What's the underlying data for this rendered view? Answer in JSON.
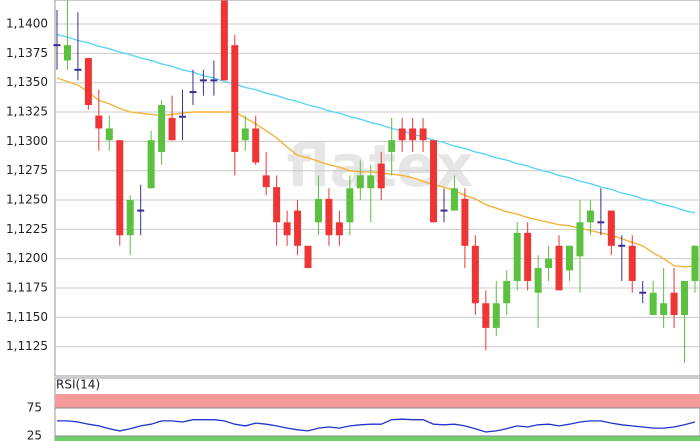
{
  "chart_data": [
    {
      "type": "candlestick",
      "watermark": "flatex",
      "open": [
        1.1382,
        1.1369,
        1.1361,
        1.1371,
        1.1322,
        1.1301,
        1.1301,
        1.122,
        1.1241,
        1.126,
        1.1291,
        1.132,
        1.1321,
        1.1342,
        1.1352,
        1.1352,
        1.142,
        1.1382,
        1.1301,
        1.1311,
        1.1271,
        1.1261,
        1.1231,
        1.1241,
        1.1211,
        1.1231,
        1.1251,
        1.1231,
        1.1231,
        1.126,
        1.126,
        1.1281,
        1.1291,
        1.1311,
        1.1311,
        1.1311,
        1.1301,
        1.1241,
        1.1241,
        1.1251,
        1.1211,
        1.1162,
        1.1141,
        1.1162,
        1.1181,
        1.1222,
        1.1171,
        1.1192,
        1.1211,
        1.119,
        1.1202,
        1.1231,
        1.1231,
        1.1241,
        1.1211,
        1.1211,
        1.1171,
        1.1152,
        1.1152,
        1.1171,
        1.1152,
        1.1181
      ],
      "high": [
        1.1412,
        1.142,
        1.141,
        1.1371,
        1.1344,
        1.1322,
        1.1301,
        1.1254,
        1.1263,
        1.1309,
        1.1335,
        1.1339,
        1.1344,
        1.1361,
        1.1361,
        1.1369,
        1.142,
        1.1391,
        1.1322,
        1.1322,
        1.1291,
        1.1271,
        1.1241,
        1.125,
        1.1211,
        1.1271,
        1.126,
        1.1241,
        1.1271,
        1.1284,
        1.128,
        1.1291,
        1.132,
        1.132,
        1.132,
        1.132,
        1.1301,
        1.126,
        1.1271,
        1.126,
        1.122,
        1.1173,
        1.1181,
        1.119,
        1.1231,
        1.1231,
        1.1203,
        1.1211,
        1.122,
        1.1211,
        1.125,
        1.125,
        1.126,
        1.1241,
        1.122,
        1.122,
        1.1181,
        1.1181,
        1.1192,
        1.1192,
        1.1181,
        1.1211
      ],
      "low": [
        1.1361,
        1.1361,
        1.1352,
        1.1327,
        1.1292,
        1.1292,
        1.1211,
        1.1203,
        1.122,
        1.126,
        1.128,
        1.1301,
        1.1301,
        1.1331,
        1.1339,
        1.1339,
        1.1352,
        1.1271,
        1.1292,
        1.128,
        1.1254,
        1.1211,
        1.1211,
        1.1203,
        1.1192,
        1.122,
        1.1211,
        1.1211,
        1.122,
        1.125,
        1.1231,
        1.125,
        1.1271,
        1.1291,
        1.1291,
        1.1291,
        1.1231,
        1.1231,
        1.1241,
        1.1192,
        1.1152,
        1.1122,
        1.1134,
        1.1152,
        1.1173,
        1.1173,
        1.1141,
        1.1181,
        1.1173,
        1.1181,
        1.1171,
        1.122,
        1.122,
        1.1203,
        1.1181,
        1.1171,
        1.1162,
        1.1152,
        1.1141,
        1.1141,
        1.1111,
        1.1171
      ],
      "close": [
        1.1382,
        1.1382,
        1.1361,
        1.1331,
        1.1311,
        1.1311,
        1.122,
        1.125,
        1.1241,
        1.1301,
        1.1331,
        1.1301,
        1.1321,
        1.1342,
        1.1352,
        1.1352,
        1.1352,
        1.1291,
        1.1311,
        1.1282,
        1.1261,
        1.1231,
        1.122,
        1.1211,
        1.1192,
        1.1251,
        1.122,
        1.122,
        1.126,
        1.1271,
        1.1271,
        1.126,
        1.1301,
        1.1301,
        1.1301,
        1.1301,
        1.1231,
        1.1241,
        1.126,
        1.1211,
        1.1162,
        1.1141,
        1.1162,
        1.1181,
        1.1222,
        1.1181,
        1.1192,
        1.12,
        1.1173,
        1.1211,
        1.1231,
        1.1241,
        1.1231,
        1.1211,
        1.1211,
        1.1181,
        1.1171,
        1.1171,
        1.1162,
        1.1152,
        1.1181,
        1.1211
      ],
      "up_color": "#5cc040",
      "down_color": "#ee3535",
      "doji_color": "#3a2d96",
      "lines": [
        {
          "color": "#5cd5f2",
          "values": [
            1.1391,
            1.1389,
            1.1386,
            1.1384,
            1.1381,
            1.1379,
            1.1376,
            1.1374,
            1.1371,
            1.1369,
            1.1366,
            1.1364,
            1.1361,
            1.1359,
            1.1356,
            1.1354,
            1.1351,
            1.1349,
            1.1346,
            1.1344,
            1.1341,
            1.1339,
            1.1336,
            1.1334,
            1.1331,
            1.1329,
            1.1326,
            1.1324,
            1.1321,
            1.1319,
            1.1316,
            1.1314,
            1.1311,
            1.1309,
            1.1306,
            1.1304,
            1.1301,
            1.1299,
            1.1296,
            1.1294,
            1.1291,
            1.1289,
            1.1286,
            1.1284,
            1.1281,
            1.1279,
            1.1276,
            1.1274,
            1.1271,
            1.1269,
            1.1266,
            1.1264,
            1.1261,
            1.1259,
            1.1256,
            1.1254,
            1.1251,
            1.1249,
            1.1246,
            1.1244,
            1.1241,
            1.1239
          ]
        },
        {
          "color": "#f4b43c",
          "values": [
            1.1354,
            1.1351,
            1.1348,
            1.1342,
            1.1335,
            1.1332,
            1.1328,
            1.1325,
            1.1324,
            1.1323,
            1.1322,
            1.1323,
            1.1324,
            1.1325,
            1.1325,
            1.1325,
            1.1325,
            1.1325,
            1.132,
            1.1315,
            1.1309,
            1.1303,
            1.1295,
            1.1288,
            1.1286,
            1.1283,
            1.128,
            1.1278,
            1.1275,
            1.1274,
            1.1274,
            1.1273,
            1.1272,
            1.1271,
            1.1269,
            1.1266,
            1.1263,
            1.1261,
            1.1258,
            1.1254,
            1.1251,
            1.1246,
            1.1243,
            1.124,
            1.1238,
            1.1235,
            1.1233,
            1.1231,
            1.1229,
            1.1228,
            1.1226,
            1.1224,
            1.1222,
            1.122,
            1.1217,
            1.1214,
            1.1211,
            1.1205,
            1.12,
            1.1194,
            1.1193,
            1.1194
          ]
        }
      ],
      "ylim": [
        1.11,
        1.14205
      ],
      "yticks": [
        {
          "value": 1.1125,
          "label": "1,1125"
        },
        {
          "value": 1.115,
          "label": "1,1150"
        },
        {
          "value": 1.1175,
          "label": "1,1175"
        },
        {
          "value": 1.12,
          "label": "1,1200"
        },
        {
          "value": 1.1225,
          "label": "1,1225"
        },
        {
          "value": 1.125,
          "label": "1,1250"
        },
        {
          "value": 1.1275,
          "label": "1,1275"
        },
        {
          "value": 1.13,
          "label": "1,1300"
        },
        {
          "value": 1.1325,
          "label": "1,1325"
        },
        {
          "value": 1.135,
          "label": "1,1350"
        },
        {
          "value": 1.1375,
          "label": "1,1375"
        },
        {
          "value": 1.14,
          "label": "1,1400"
        }
      ],
      "grid": true
    },
    {
      "type": "line",
      "title": "RSI(14)",
      "color": "#2233cc",
      "values": [
        52,
        52,
        50,
        46,
        43,
        38,
        34,
        38,
        43,
        46,
        52,
        52,
        50,
        54,
        54,
        54,
        52,
        46,
        43,
        48,
        46,
        43,
        39,
        36,
        34,
        39,
        41,
        39,
        43,
        45,
        46,
        46,
        54,
        55,
        54,
        54,
        46,
        45,
        46,
        43,
        38,
        32,
        34,
        38,
        43,
        41,
        45,
        46,
        43,
        46,
        50,
        52,
        52,
        48,
        45,
        43,
        41,
        39,
        39,
        41,
        45,
        50
      ],
      "bands": [
        {
          "from": 75,
          "to": 100,
          "color": "#f49a9a"
        },
        {
          "from": 0,
          "to": 25,
          "color": "#6fd06a"
        }
      ],
      "ylim": [
        16,
        100
      ],
      "yticks": [
        75,
        25
      ],
      "grid": true
    }
  ]
}
